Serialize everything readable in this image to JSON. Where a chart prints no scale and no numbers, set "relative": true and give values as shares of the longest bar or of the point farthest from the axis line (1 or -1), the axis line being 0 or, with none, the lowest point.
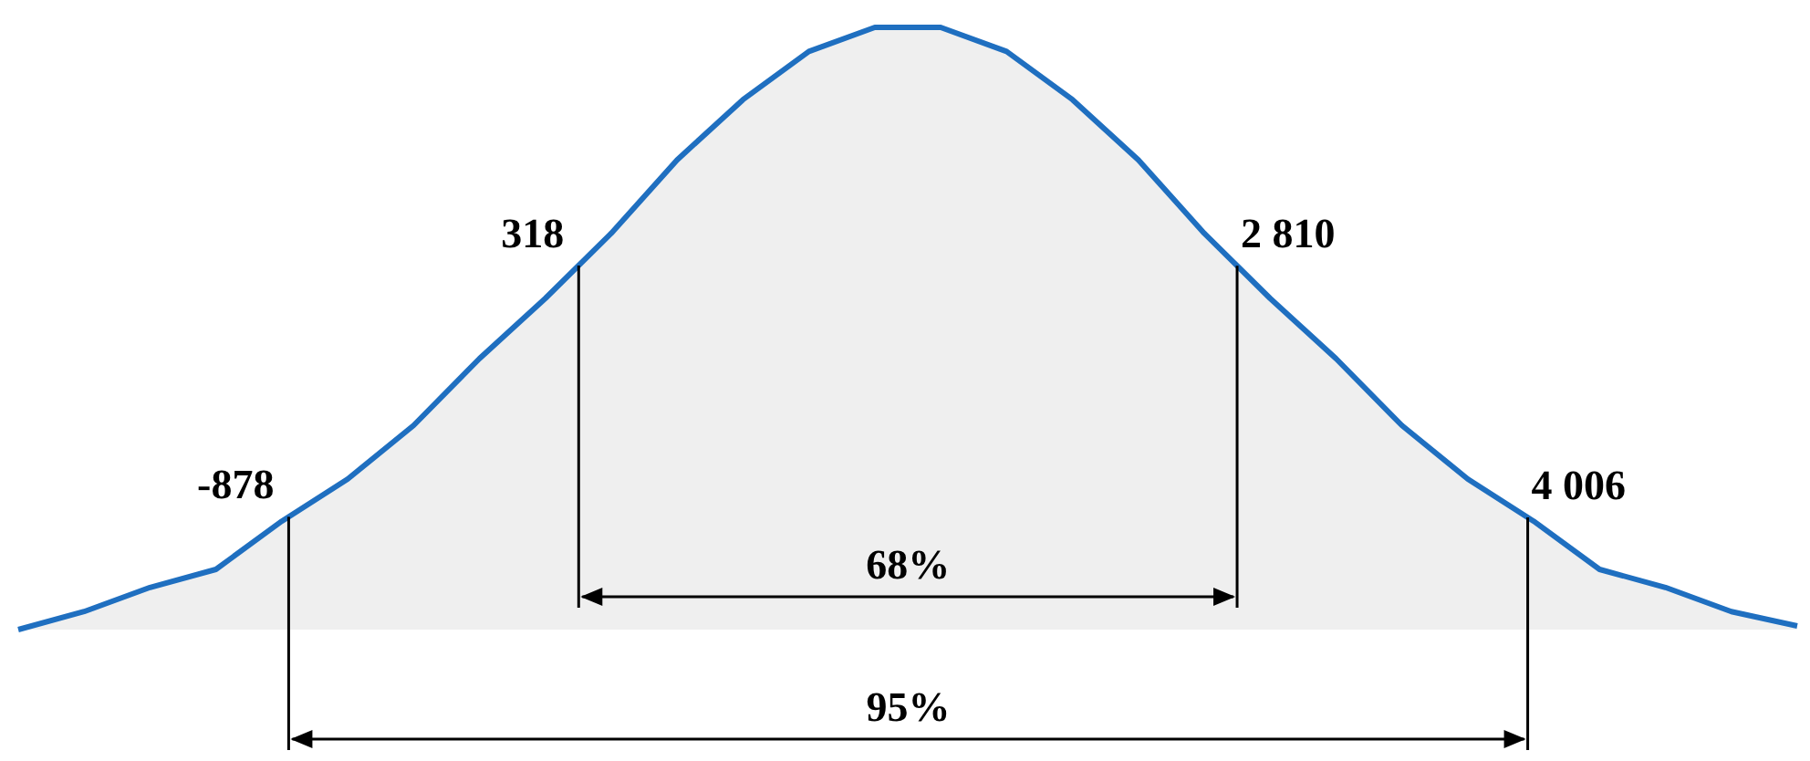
{
  "chart_data": {
    "type": "area",
    "relative": true,
    "categories": [
      null,
      null,
      null,
      null,
      null,
      null,
      null,
      null,
      null,
      null,
      null,
      null,
      null,
      null,
      null,
      null,
      null,
      null,
      null,
      null,
      null,
      null,
      null,
      null,
      null,
      null,
      null,
      null
    ],
    "series": [
      {
        "color": "#1f6fc0",
        "values": [
          0,
          0.03,
          0.07,
          0.1,
          0.18,
          0.25,
          0.339,
          0.45,
          0.55,
          0.658,
          0.78,
          0.88,
          0.96,
          1,
          1,
          0.96,
          0.88,
          0.78,
          0.658,
          0.55,
          0.45,
          0.339,
          0.25,
          0.18,
          0.1,
          0.07,
          0.03,
          0.006
        ]
      }
    ],
    "annotations": [
      "-878",
      "318",
      "2 810",
      "4 006",
      "68%",
      "95%"
    ]
  }
}
